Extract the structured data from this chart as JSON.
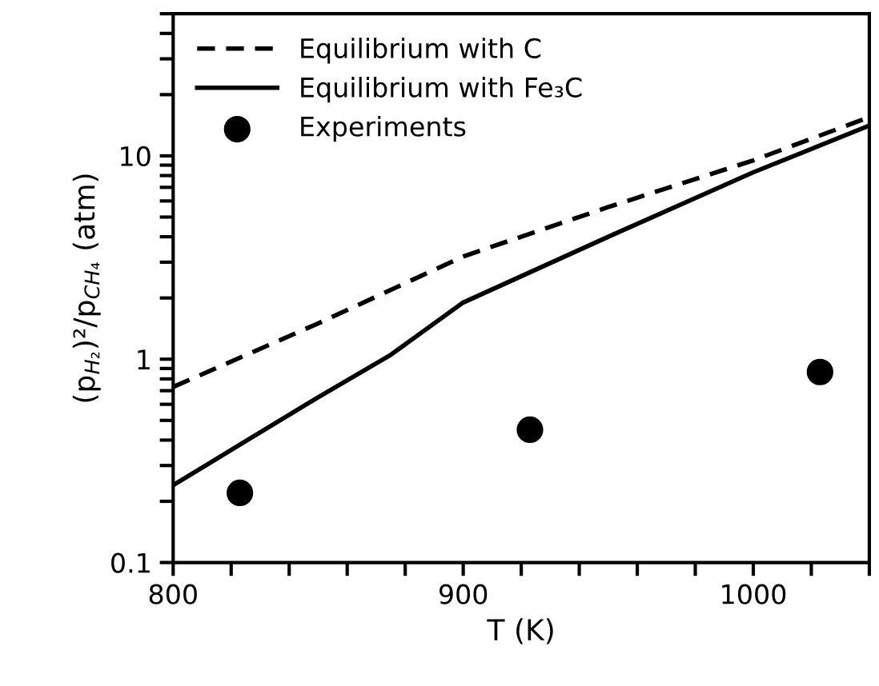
{
  "chart_data": {
    "type": "line",
    "xlabel": "T (K)",
    "ylabel": "(p$_{H₂}$)²/p$_{CH₄}$ (atm)",
    "log": "y",
    "legend": "top left",
    "xlim": [
      800,
      1040
    ],
    "ylim": [
      0.1,
      50
    ],
    "xticks": [
      800,
      {
        "value": 820,
        "label": null
      },
      {
        "value": 840,
        "label": null
      },
      {
        "value": 860,
        "label": null
      },
      {
        "value": 880,
        "label": null
      },
      900,
      {
        "value": 920,
        "label": null
      },
      {
        "value": 940,
        "label": null
      },
      {
        "value": 960,
        "label": null
      },
      {
        "value": 980,
        "label": null
      },
      1000,
      {
        "value": 1020,
        "label": null
      },
      {
        "value": 1040,
        "label": null
      }
    ],
    "yticks": [
      0.1,
      {
        "value": 0.2,
        "label": null
      },
      {
        "value": 0.3,
        "label": null
      },
      {
        "value": 0.4,
        "label": null
      },
      {
        "value": 0.5,
        "label": null
      },
      {
        "value": 0.6,
        "label": null
      },
      {
        "value": 0.7,
        "label": null
      },
      {
        "value": 0.8,
        "label": null
      },
      {
        "value": 0.9,
        "label": null
      },
      1,
      {
        "value": 2,
        "label": null
      },
      {
        "value": 3,
        "label": null
      },
      {
        "value": 4,
        "label": null
      },
      {
        "value": 5,
        "label": null
      },
      {
        "value": 6,
        "label": null
      },
      {
        "value": 7,
        "label": null
      },
      {
        "value": 8,
        "label": null
      },
      {
        "value": 9,
        "label": null
      },
      10,
      {
        "value": 20,
        "label": null
      },
      {
        "value": 30,
        "label": null
      },
      {
        "value": 40,
        "label": null
      },
      {
        "value": 50,
        "label": null
      }
    ],
    "series": [
      {
        "name": "Equilibrium with C",
        "line_style": "dashed",
        "color": "#000000",
        "x": [
          800,
          850,
          900,
          950,
          1000,
          1040
        ],
        "values": [
          0.73,
          1.5,
          3.2,
          5.6,
          9.5,
          15.5
        ]
      },
      {
        "name": "Equilibrium with Fe₃C",
        "line_style": "solid",
        "color": "#000000",
        "x": [
          800,
          823,
          850,
          875,
          900,
          950,
          1000,
          1040
        ],
        "values": [
          0.24,
          0.38,
          0.65,
          1.05,
          1.9,
          4.0,
          8.3,
          14.1
        ]
      },
      {
        "name": "Experiments",
        "type": "scatter",
        "marker": "circle",
        "color": "#000000",
        "x": [
          823,
          923,
          1023
        ],
        "values": [
          0.22,
          0.45,
          0.865
        ]
      }
    ]
  }
}
